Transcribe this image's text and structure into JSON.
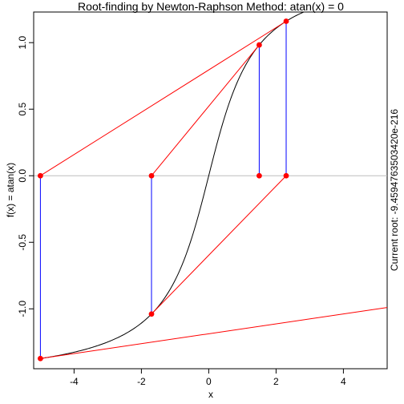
{
  "chart_data": {
    "type": "line",
    "title": "Root-finding by Newton-Raphson Method: atan(x) = 0",
    "xlabel": "x",
    "ylabel": "f(x) = atan(x)",
    "side_note": "Current root: -9.4594763503420e-216",
    "xlim": [
      -5.2,
      5.3
    ],
    "ylim": [
      -1.45,
      1.23
    ],
    "x_ticks": [
      -4,
      -2,
      0,
      2,
      4
    ],
    "x_tick_labels": [
      "-4",
      "-2",
      "0",
      "2",
      "4"
    ],
    "y_ticks": [
      -1.0,
      -0.5,
      0.0,
      0.5,
      1.0
    ],
    "y_tick_labels": [
      "-1.0",
      "-0.5",
      "0.0",
      "0.5",
      "1.0"
    ],
    "curve": {
      "function": "atan",
      "x_range": [
        -5,
        5
      ],
      "color": "#000000"
    },
    "zero_line_color": "#bebebe",
    "iterate_points": [
      {
        "x": -5.0,
        "y": 0.0
      },
      {
        "x": -5.0,
        "y": -1.3734
      },
      {
        "x": -1.7,
        "y": 0.0
      },
      {
        "x": -1.7,
        "y": -1.0391
      },
      {
        "x": 1.5,
        "y": 0.0
      },
      {
        "x": 1.5,
        "y": 0.9828
      },
      {
        "x": 2.3,
        "y": 0.0
      },
      {
        "x": 2.3,
        "y": 1.1607
      }
    ],
    "vertical_segments": [
      {
        "x": -5.0,
        "y0": 0.0,
        "y1": -1.3734
      },
      {
        "x": -1.7,
        "y0": 0.0,
        "y1": -1.0391
      },
      {
        "x": 1.5,
        "y0": 0.0,
        "y1": 0.9828
      },
      {
        "x": 2.3,
        "y0": 0.0,
        "y1": 1.1607
      }
    ],
    "tangent_lines": [
      {
        "x0": -5.0,
        "y0": 0.0,
        "x1": 2.3,
        "y1": 1.1607
      },
      {
        "x0": -1.7,
        "y0": 0.0,
        "x1": 1.5,
        "y1": 0.9828
      },
      {
        "x0": -1.7,
        "y0": -1.0391,
        "x1": 2.3,
        "y1": 0.0
      },
      {
        "x0": -5.0,
        "y0": -1.3734,
        "x1": 5.3,
        "y1": -0.99
      }
    ],
    "colors": {
      "points": "#ff0000",
      "tangent": "#ff0000",
      "vertical": "#0000ff"
    },
    "grid": false,
    "legend": "none"
  }
}
